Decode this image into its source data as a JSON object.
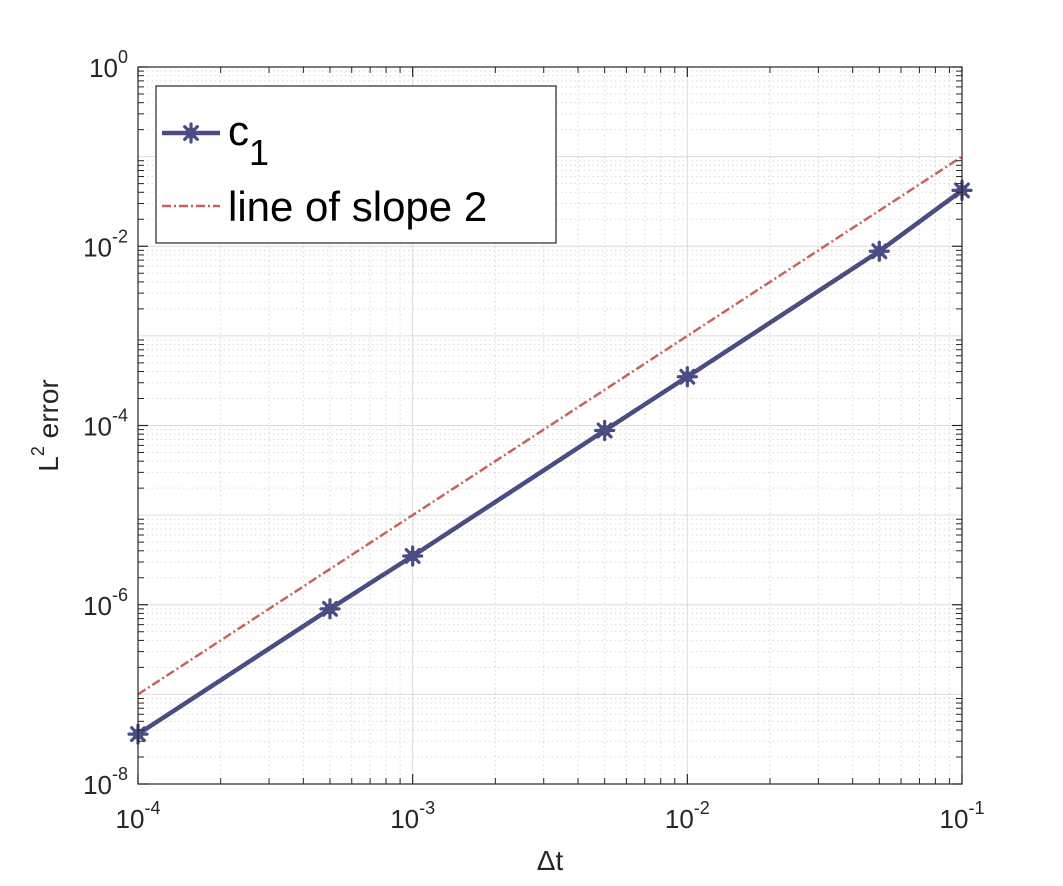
{
  "chart_data": {
    "type": "line",
    "xlabel": "Δt",
    "ylabel": {
      "base": "L",
      "sup": "2",
      "rest": " error"
    },
    "xscale": "log",
    "yscale": "log",
    "xlim": [
      0.0001,
      0.1
    ],
    "ylim": [
      1e-08,
      1
    ],
    "grid": true,
    "minor_grid": true,
    "legend_placement": "top-left",
    "x_ticks": [
      {
        "value": 0.0001,
        "base": "10",
        "exp": "-4"
      },
      {
        "value": 0.001,
        "base": "10",
        "exp": "-3"
      },
      {
        "value": 0.01,
        "base": "10",
        "exp": "-2"
      },
      {
        "value": 0.1,
        "base": "10",
        "exp": "-1"
      }
    ],
    "y_ticks": [
      {
        "value": 1e-08,
        "base": "10",
        "exp": "-8"
      },
      {
        "value": 1e-06,
        "base": "10",
        "exp": "-6"
      },
      {
        "value": 0.0001,
        "base": "10",
        "exp": "-4"
      },
      {
        "value": 0.01,
        "base": "10",
        "exp": "-2"
      },
      {
        "value": 1,
        "base": "10",
        "exp": "0"
      }
    ],
    "series": [
      {
        "name": "c",
        "name_sub": "1",
        "color": "#4a4d82",
        "style": "solid-star",
        "x": [
          0.0001,
          0.0005,
          0.001,
          0.005,
          0.01,
          0.05,
          0.1
        ],
        "y": [
          3.6e-08,
          9e-07,
          3.5e-06,
          8.8e-05,
          0.00035,
          0.0088,
          0.042
        ]
      },
      {
        "name": "line of slope 2",
        "color": "#c8625e",
        "style": "dashdot",
        "x": [
          0.0001,
          0.1
        ],
        "y": [
          1e-07,
          0.1
        ]
      }
    ]
  }
}
